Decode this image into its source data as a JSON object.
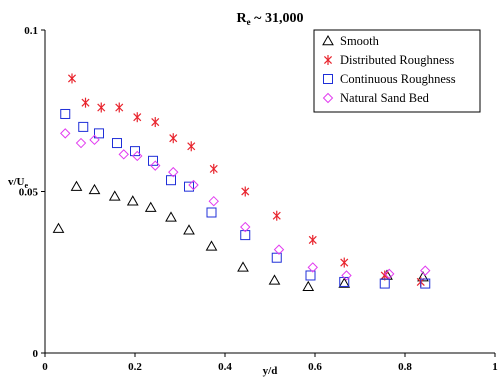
{
  "chart_data": {
    "type": "scatter",
    "title": "Re ~ 31,000",
    "title_parts": {
      "base": "R",
      "sub": "e",
      "rest": " ~ 31,000"
    },
    "xlabel": "y/d",
    "ylabel": "v/Ue",
    "ylabel_parts": {
      "base": "v/U",
      "sub": "e"
    },
    "xlim": [
      0,
      1
    ],
    "ylim": [
      0,
      0.1
    ],
    "x_ticks": [
      0,
      0.2,
      0.4,
      0.6,
      0.8,
      1
    ],
    "x_tick_labels": [
      "0",
      "0.2",
      "0.4",
      "0.6",
      "0.8",
      "1"
    ],
    "y_ticks": [
      0,
      0.05,
      0.1
    ],
    "y_tick_labels": [
      "0",
      "0.05",
      "0.1"
    ],
    "grid": false,
    "legend_position": "top-right",
    "series": [
      {
        "name": "Smooth",
        "marker": "triangle",
        "color": "#000000",
        "points": [
          [
            0.03,
            0.0385
          ],
          [
            0.07,
            0.0515
          ],
          [
            0.11,
            0.0505
          ],
          [
            0.155,
            0.0485
          ],
          [
            0.195,
            0.047
          ],
          [
            0.235,
            0.045
          ],
          [
            0.28,
            0.042
          ],
          [
            0.32,
            0.038
          ],
          [
            0.37,
            0.033
          ],
          [
            0.44,
            0.0265
          ],
          [
            0.51,
            0.0225
          ],
          [
            0.585,
            0.0205
          ],
          [
            0.665,
            0.0215
          ],
          [
            0.76,
            0.024
          ],
          [
            0.84,
            0.0235
          ]
        ]
      },
      {
        "name": "Distributed Roughness",
        "marker": "asterisk",
        "color": "#e8242d",
        "points": [
          [
            0.06,
            0.085
          ],
          [
            0.09,
            0.0775
          ],
          [
            0.125,
            0.076
          ],
          [
            0.165,
            0.076
          ],
          [
            0.205,
            0.073
          ],
          [
            0.245,
            0.0715
          ],
          [
            0.285,
            0.0665
          ],
          [
            0.325,
            0.064
          ],
          [
            0.375,
            0.057
          ],
          [
            0.445,
            0.05
          ],
          [
            0.515,
            0.0425
          ],
          [
            0.595,
            0.035
          ],
          [
            0.665,
            0.028
          ],
          [
            0.755,
            0.024
          ],
          [
            0.835,
            0.022
          ]
        ]
      },
      {
        "name": "Continuous Roughness",
        "marker": "square",
        "color": "#1f2fd8",
        "points": [
          [
            0.045,
            0.074
          ],
          [
            0.085,
            0.07
          ],
          [
            0.12,
            0.068
          ],
          [
            0.16,
            0.065
          ],
          [
            0.2,
            0.0625
          ],
          [
            0.24,
            0.0595
          ],
          [
            0.28,
            0.0535
          ],
          [
            0.32,
            0.0515
          ],
          [
            0.37,
            0.0435
          ],
          [
            0.445,
            0.0365
          ],
          [
            0.515,
            0.0295
          ],
          [
            0.59,
            0.024
          ],
          [
            0.665,
            0.022
          ],
          [
            0.755,
            0.0215
          ],
          [
            0.845,
            0.0215
          ]
        ]
      },
      {
        "name": "Natural Sand Bed",
        "marker": "diamond",
        "color": "#e23cf0",
        "points": [
          [
            0.045,
            0.068
          ],
          [
            0.08,
            0.065
          ],
          [
            0.11,
            0.066
          ],
          [
            0.175,
            0.0615
          ],
          [
            0.205,
            0.061
          ],
          [
            0.245,
            0.058
          ],
          [
            0.285,
            0.056
          ],
          [
            0.33,
            0.052
          ],
          [
            0.375,
            0.047
          ],
          [
            0.445,
            0.039
          ],
          [
            0.52,
            0.032
          ],
          [
            0.595,
            0.0265
          ],
          [
            0.67,
            0.024
          ],
          [
            0.765,
            0.0245
          ],
          [
            0.845,
            0.0255
          ]
        ]
      }
    ]
  }
}
